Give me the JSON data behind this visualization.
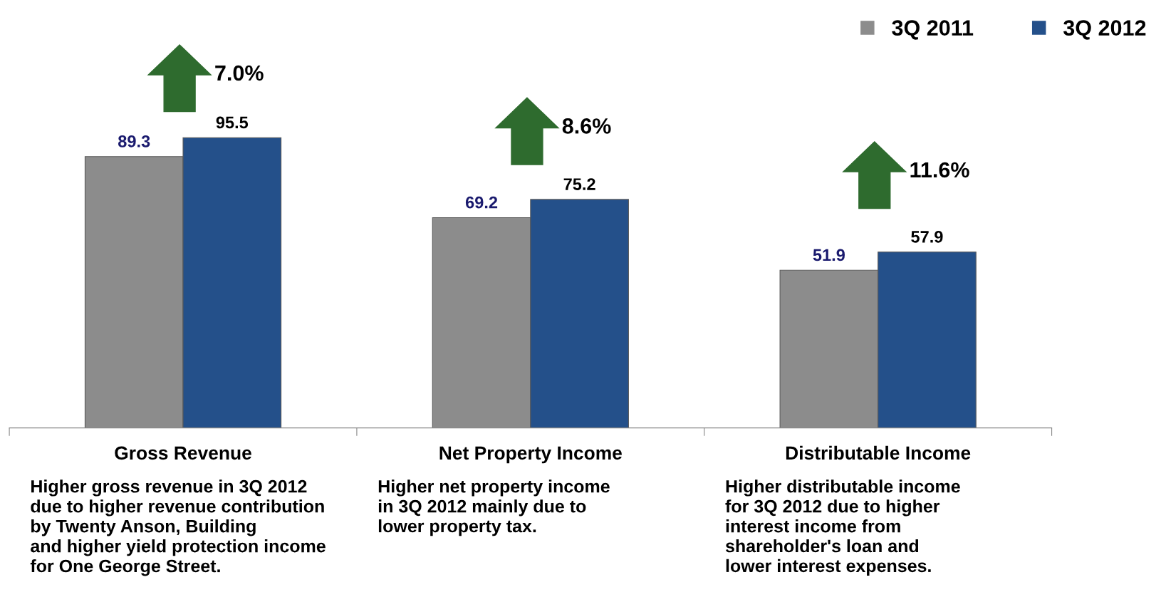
{
  "chart_data": {
    "type": "bar",
    "categories": [
      "Gross Revenue",
      "Net Property Income",
      "Distributable Income"
    ],
    "series": [
      {
        "name": "3Q 2011",
        "color": "#8c8c8c",
        "values": [
          89.3,
          69.2,
          51.9
        ]
      },
      {
        "name": "3Q 2012",
        "color": "#24508a",
        "values": [
          95.5,
          75.2,
          57.9
        ]
      }
    ],
    "data_labels": true,
    "legend": "top right",
    "grid": false,
    "annotations": [
      "7.0%",
      "8.6%",
      "11.6%",
      "Higher gross revenue in 3Q 2012\ndue to higher revenue contribution\nby Twenty Anson, Building\nand higher yield protection income\nfor One George Street.",
      "Higher net property income\nin 3Q 2012 mainly due to\nlower property tax.",
      "Higher distributable income\nfor 3Q 2012 due to higher\ninterest income from\nshareholder's loan and\nlower interest expenses."
    ]
  }
}
